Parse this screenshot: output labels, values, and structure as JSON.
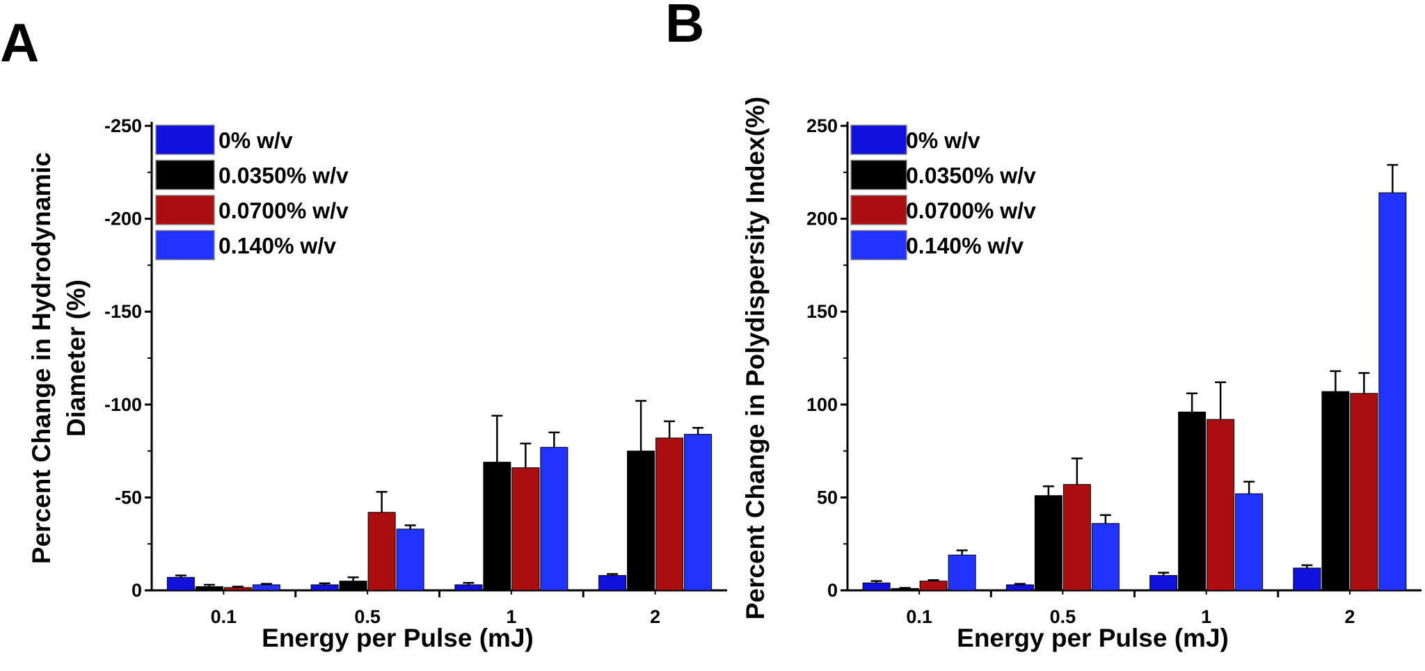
{
  "colors": {
    "series": [
      "#1111dd",
      "#000000",
      "#aa0e0e",
      "#2233ff"
    ],
    "errorbar": "#000000",
    "axis": "#000000"
  },
  "chart_data": [
    {
      "panel": "A",
      "type": "bar",
      "title": "",
      "categories": [
        "0.1",
        "0.5",
        "1",
        "2"
      ],
      "xlabel": "Energy per Pulse (mJ)",
      "ylabel": [
        "Percent Change in Hydrodynamic",
        "Diameter (%)"
      ],
      "ylim": [
        0,
        -250
      ],
      "yticks": [
        0,
        -50,
        -100,
        -150,
        -200,
        -250
      ],
      "ytick_labels": [
        "0",
        "-50",
        "-100",
        "-150",
        "-200",
        "-250"
      ],
      "legend_position": "top-left",
      "series": [
        {
          "name": "0% w/v",
          "values": [
            -7,
            -3,
            -3,
            -8
          ],
          "errors": [
            1,
            0.8,
            1,
            0.8
          ]
        },
        {
          "name": "0.0350% w/v",
          "values": [
            -2,
            -5,
            -69,
            -75
          ],
          "errors": [
            1,
            2,
            25,
            27
          ]
        },
        {
          "name": "0.0700% w/v",
          "values": [
            -1.5,
            -42,
            -66,
            -82
          ],
          "errors": [
            0.5,
            11,
            13,
            9
          ]
        },
        {
          "name": "0.140% w/v",
          "values": [
            -3,
            -33,
            -77,
            -84
          ],
          "errors": [
            0.5,
            2,
            8,
            3.5
          ]
        }
      ]
    },
    {
      "panel": "B",
      "type": "bar",
      "title": "",
      "categories": [
        "0.1",
        "0.5",
        "1",
        "2"
      ],
      "xlabel": "Energy per Pulse (mJ)",
      "ylabel": [
        "Percent Change in Polydispersity Index(%)"
      ],
      "ylim": [
        0,
        250
      ],
      "yticks": [
        0,
        50,
        100,
        150,
        200,
        250
      ],
      "ytick_labels": [
        "0",
        "50",
        "100",
        "150",
        "200",
        "250"
      ],
      "legend_position": "top-left",
      "series": [
        {
          "name": "0% w/v",
          "values": [
            4,
            3,
            8,
            12
          ],
          "errors": [
            1,
            0.5,
            1.5,
            1.5
          ]
        },
        {
          "name": "0.0350% w/v",
          "values": [
            1,
            51,
            96,
            107
          ],
          "errors": [
            0.3,
            5,
            10,
            11
          ]
        },
        {
          "name": "0.0700% w/v",
          "values": [
            5,
            57,
            92,
            106
          ],
          "errors": [
            0.5,
            14,
            20,
            11
          ]
        },
        {
          "name": "0.140% w/v",
          "values": [
            19,
            36,
            52,
            214
          ],
          "errors": [
            2.5,
            4.5,
            6.5,
            15
          ]
        }
      ]
    }
  ]
}
